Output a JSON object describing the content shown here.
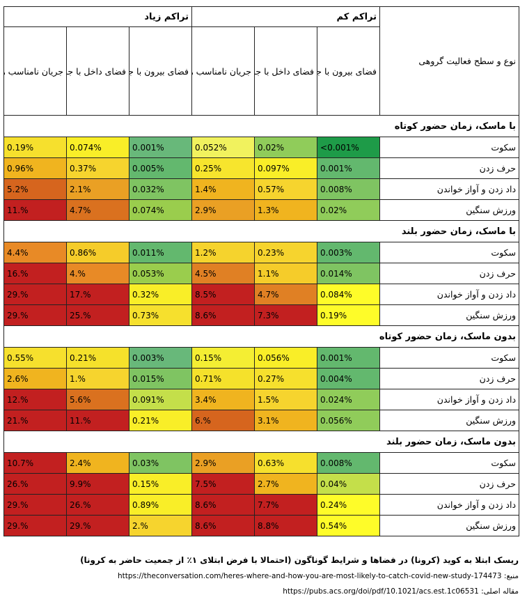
{
  "table": {
    "row_header": "نوع و سطح فعالیت گروهی",
    "groups": [
      {
        "label": "تراکم کم",
        "columns": [
          "فضای بیرون با جریان مناسب هوا",
          "فضای داخل با جریان مناسب هوا",
          "جریان نامناسب هوا"
        ]
      },
      {
        "label": "تراکم زیاد",
        "columns": [
          "فضای بیرون با جریان مناسب هوا",
          "فضای داخل با جریان مناسب هوا",
          "جریان نامناسب هوا"
        ]
      }
    ],
    "sections": [
      {
        "title": "با ماسک، زمان حضور کوتاه",
        "rows": [
          {
            "label": "سکوت",
            "values": [
              "<0.001%",
              "0.02%",
              "0.052%",
              "0.001%",
              "0.074%",
              "0.19%"
            ]
          },
          {
            "label": "حرف زدن",
            "values": [
              "0.001%",
              "0.097%",
              "0.25%",
              "0.005%",
              "0.37%",
              "0.96%"
            ]
          },
          {
            "label": "داد زدن و آواز خواندن",
            "values": [
              "0.008%",
              "0.57%",
              "1.4%",
              "0.032%",
              "2.1%",
              "5.2%"
            ]
          },
          {
            "label": "ورزش سنگین",
            "values": [
              "0.02%",
              "1.3%",
              "2.9%",
              "0.074%",
              "4.7%",
              "11.%"
            ]
          }
        ]
      },
      {
        "title": "با ماسک، زمان حضور بلند",
        "rows": [
          {
            "label": "سکوت",
            "values": [
              "0.003%",
              "0.23%",
              "1.2%",
              "0.011%",
              "0.86%",
              "4.4%"
            ]
          },
          {
            "label": "حرف زدن",
            "values": [
              "0.014%",
              "1.1%",
              "4.5%",
              "0.053%",
              "4.%",
              "16.%"
            ]
          },
          {
            "label": "داد زدن و آواز خواندن",
            "values": [
              "0.084%",
              "4.7%",
              "8.5%",
              "0.32%",
              "17.%",
              "29.%"
            ]
          },
          {
            "label": "ورزش سنگین",
            "values": [
              "0.19%",
              "7.3%",
              "8.6%",
              "0.73%",
              "25.%",
              "29.%"
            ]
          }
        ]
      },
      {
        "title": "بدون ماسک، زمان حضور کوتاه",
        "rows": [
          {
            "label": "سکوت",
            "values": [
              "0.001%",
              "0.056%",
              "0.15%",
              "0.003%",
              "0.21%",
              "0.55%"
            ]
          },
          {
            "label": "حرف زدن",
            "values": [
              "0.004%",
              "0.27%",
              "0.71%",
              "0.015%",
              "1.%",
              "2.6%"
            ]
          },
          {
            "label": "داد زدن و آواز خواندن",
            "values": [
              "0.024%",
              "1.5%",
              "3.4%",
              "0.091%",
              "5.6%",
              "12.%"
            ]
          },
          {
            "label": "ورزش سنگین",
            "values": [
              "0.056%",
              "3.1%",
              "6.%",
              "0.21%",
              "11.%",
              "21.%"
            ]
          }
        ]
      },
      {
        "title": "بدون ماسک، زمان حضور بلند",
        "rows": [
          {
            "label": "سکوت",
            "values": [
              "0.008%",
              "0.63%",
              "2.9%",
              "0.03%",
              "2.4%",
              "10.7%"
            ]
          },
          {
            "label": "حرف زدن",
            "values": [
              "0.04%",
              "2.7%",
              "7.5%",
              "0.15%",
              "9.9%",
              "26.%"
            ]
          },
          {
            "label": "داد زدن و آواز خواندن",
            "values": [
              "0.24%",
              "7.7%",
              "8.6%",
              "0.89%",
              "26.%",
              "29.%"
            ]
          },
          {
            "label": "ورزش سنگین",
            "values": [
              "0.54%",
              "8.8%",
              "8.6%",
              "2.%",
              "29.%",
              "29.%"
            ]
          }
        ]
      }
    ],
    "cell_colors": [
      [
        [
          "#1e9b48",
          "#90cc5a",
          "#f1f25e",
          "#68b87a",
          "#f9ee28",
          "#f6e02d"
        ],
        [
          "#63b86e",
          "#f9ee28",
          "#f7e52d",
          "#63b86e",
          "#f6d42e",
          "#f0b41f"
        ],
        [
          "#7fc462",
          "#f6d42e",
          "#f0b41f",
          "#7fc462",
          "#eaa024",
          "#d6651e"
        ],
        [
          "#90cc5a",
          "#f0b41f",
          "#eaa024",
          "#9acd4d",
          "#da711f",
          "#c22020"
        ]
      ],
      [
        [
          "#63b86e",
          "#f6d42e",
          "#f5d32d",
          "#63b86e",
          "#f5cc2a",
          "#e88a26"
        ],
        [
          "#7fc462",
          "#f5cc2a",
          "#e08024",
          "#9acd4d",
          "#e88a26",
          "#c22020"
        ],
        [
          "#fefc29",
          "#e08024",
          "#c22020",
          "#f9ee28",
          "#c22020",
          "#c22020"
        ],
        [
          "#fefc29",
          "#c22020",
          "#c22020",
          "#f6e02d",
          "#c22020",
          "#c22020"
        ]
      ],
      [
        [
          "#63b86e",
          "#f9ee28",
          "#f4ee33",
          "#68b87a",
          "#f5e12b",
          "#f6e02d"
        ],
        [
          "#63b86e",
          "#f6e02d",
          "#f5e12b",
          "#7fc462",
          "#f6d42e",
          "#f0b41f"
        ],
        [
          "#90cc5a",
          "#f6d42e",
          "#f0b41f",
          "#c4df4a",
          "#da711f",
          "#c22020"
        ],
        [
          "#90cc5a",
          "#f0b41f",
          "#d6651e",
          "#f9ee28",
          "#c22020",
          "#c22020"
        ]
      ],
      [
        [
          "#63b86e",
          "#f6e02d",
          "#eaa024",
          "#7fc462",
          "#f0b41f",
          "#c22020"
        ],
        [
          "#c4df4a",
          "#f0b41f",
          "#c22020",
          "#f9ee28",
          "#c22020",
          "#c22020"
        ],
        [
          "#fefc29",
          "#c22020",
          "#c22020",
          "#f9ee28",
          "#c22020",
          "#c22020"
        ],
        [
          "#fefc29",
          "#c22020",
          "#c22020",
          "#f6d42e",
          "#c22020",
          "#c22020"
        ]
      ]
    ]
  },
  "caption": "ریسک ابتلا به کوید (کرونا) در فضاها و شرایط گوناگون (احتمالا با فرض ابتلای ۱٪ از جمعیت حاضر به کرونا)",
  "sources": [
    {
      "label": "منبع:",
      "url": "https://theconversation.com/heres-where-and-how-you-are-most-likely-to-catch-covid-new-study-174473"
    },
    {
      "label": "مقاله اصلی:",
      "url": "https://pubs.acs.org/doi/pdf/10.1021/acs.est.1c06531"
    }
  ]
}
